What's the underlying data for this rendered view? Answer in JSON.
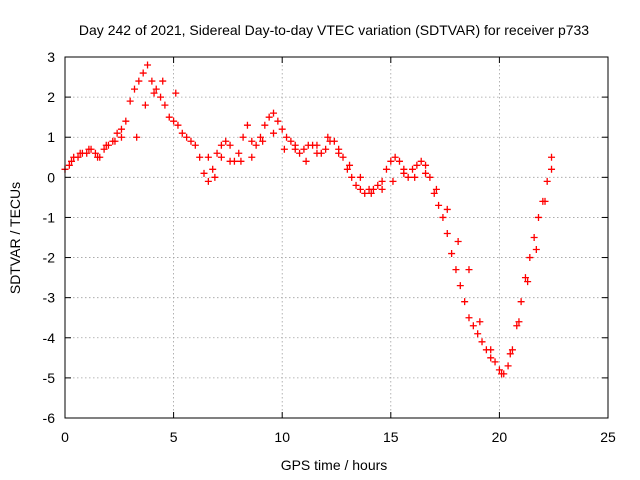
{
  "chart_data": {
    "type": "scatter",
    "title": "Day 242 of 2021, Sidereal Day-to-day VTEC variation (SDTVAR) for receiver p733",
    "xlabel": "GPS time / hours",
    "ylabel": "SDTVAR / TECUs",
    "xlim": [
      0,
      25
    ],
    "ylim": [
      -6,
      3
    ],
    "x_ticks": [
      "0",
      "5",
      "10",
      "15",
      "20",
      "25"
    ],
    "y_ticks": [
      "3",
      "2",
      "1",
      "0",
      "-1",
      "-2",
      "-3",
      "-4",
      "-5",
      "-6"
    ],
    "grid": true,
    "marker": "+",
    "color": "#ff0000",
    "series": [
      {
        "name": "SDTVAR",
        "x": [
          0.0,
          0.2,
          0.4,
          0.6,
          0.8,
          1.0,
          1.2,
          1.4,
          1.6,
          1.8,
          2.0,
          2.2,
          2.4,
          2.6,
          2.8,
          3.0,
          3.2,
          3.4,
          3.6,
          3.8,
          4.0,
          4.2,
          4.4,
          4.6,
          4.8,
          5.0,
          5.2,
          5.4,
          5.6,
          5.8,
          6.0,
          6.2,
          6.4,
          6.6,
          6.8,
          7.0,
          7.2,
          7.4,
          7.6,
          7.8,
          8.0,
          8.2,
          8.4,
          8.6,
          8.8,
          9.0,
          9.2,
          9.4,
          9.6,
          9.8,
          10.0,
          10.2,
          10.4,
          10.6,
          10.8,
          11.0,
          11.2,
          11.4,
          11.6,
          11.8,
          12.0,
          12.2,
          12.4,
          12.6,
          12.8,
          13.0,
          13.2,
          13.4,
          13.6,
          13.8,
          14.0,
          14.2,
          14.4,
          14.6,
          14.8,
          15.0,
          15.2,
          15.4,
          15.6,
          15.8,
          16.0,
          16.2,
          16.4,
          16.6,
          16.8,
          17.0,
          17.2,
          17.4,
          17.6,
          17.8,
          18.0,
          18.2,
          18.4,
          18.6,
          18.8,
          19.0,
          19.2,
          19.4,
          19.6,
          19.8,
          20.0,
          20.2,
          20.4,
          20.6,
          20.8,
          21.0,
          21.2,
          21.4,
          21.6,
          21.8,
          22.0,
          22.2,
          22.4,
          0.3,
          0.7,
          1.1,
          1.5,
          1.9,
          2.3,
          2.6,
          3.3,
          3.7,
          4.1,
          4.5,
          5.1,
          6.6,
          6.9,
          7.2,
          7.6,
          8.1,
          8.6,
          9.1,
          9.6,
          10.1,
          10.6,
          11.1,
          11.6,
          12.1,
          12.6,
          13.1,
          13.6,
          14.1,
          14.6,
          15.1,
          15.6,
          16.1,
          16.6,
          17.1,
          17.6,
          18.1,
          18.6,
          19.1,
          19.6,
          20.1,
          20.5,
          20.9,
          21.3,
          21.7,
          22.1,
          22.4
        ],
        "y": [
          0.2,
          0.3,
          0.5,
          0.5,
          0.6,
          0.6,
          0.7,
          0.6,
          0.5,
          0.7,
          0.8,
          0.9,
          1.1,
          1.2,
          1.4,
          1.9,
          2.2,
          2.4,
          2.6,
          2.8,
          2.4,
          2.2,
          2.0,
          1.8,
          1.5,
          1.4,
          1.3,
          1.1,
          1.0,
          0.9,
          0.8,
          0.5,
          0.1,
          -0.1,
          0.2,
          0.6,
          0.8,
          0.9,
          0.8,
          0.4,
          0.6,
          1.0,
          1.3,
          0.9,
          0.8,
          1.0,
          1.3,
          1.5,
          1.6,
          1.4,
          1.2,
          1.0,
          0.9,
          0.7,
          0.6,
          0.7,
          0.8,
          0.8,
          0.8,
          0.6,
          0.7,
          0.9,
          0.9,
          0.7,
          0.5,
          0.2,
          0.0,
          -0.2,
          -0.3,
          -0.4,
          -0.3,
          -0.3,
          -0.2,
          -0.1,
          0.2,
          0.4,
          0.5,
          0.4,
          0.2,
          0.0,
          0.2,
          0.3,
          0.4,
          0.3,
          0.0,
          -0.4,
          -0.7,
          -1.0,
          -1.4,
          -1.9,
          -2.3,
          -2.7,
          -3.1,
          -3.5,
          -3.7,
          -3.9,
          -4.1,
          -4.3,
          -4.5,
          -4.6,
          -4.8,
          -4.9,
          -4.7,
          -4.3,
          -3.7,
          -3.1,
          -2.5,
          -2.0,
          -1.5,
          -1.0,
          -0.6,
          -0.1,
          0.5,
          0.4,
          0.6,
          0.7,
          0.5,
          0.8,
          0.9,
          1.0,
          1.0,
          1.8,
          2.1,
          2.4,
          2.1,
          0.5,
          0.0,
          0.5,
          0.4,
          0.4,
          0.5,
          0.9,
          1.1,
          0.7,
          0.8,
          0.4,
          0.6,
          1.0,
          0.6,
          0.3,
          0.0,
          -0.4,
          -0.3,
          -0.1,
          0.1,
          0.0,
          0.1,
          -0.3,
          -0.8,
          -1.6,
          -2.3,
          -3.6,
          -4.3,
          -4.9,
          -4.4,
          -3.6,
          -2.6,
          -1.8,
          -0.6,
          0.2
        ]
      }
    ]
  }
}
